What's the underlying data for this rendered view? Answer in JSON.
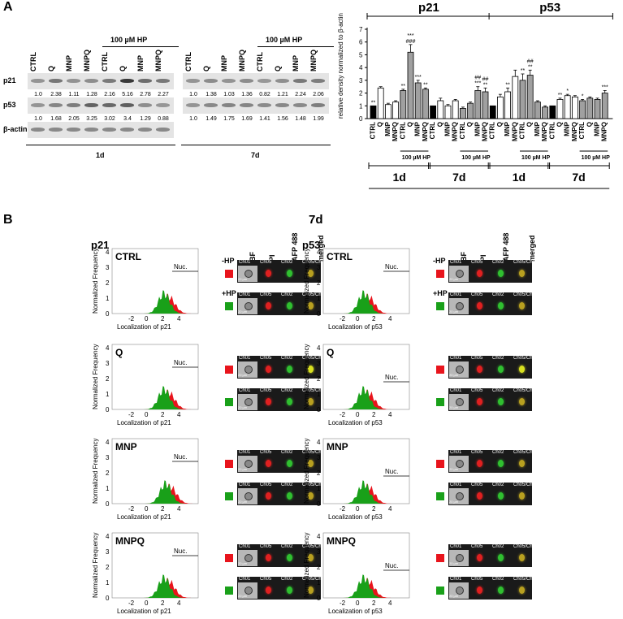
{
  "panel_a": {
    "label": "A",
    "blot_1d": {
      "lanes": [
        "CTRL",
        "Q",
        "MNP",
        "MNPQ",
        "CTRL",
        "Q",
        "MNP",
        "MNPQ"
      ],
      "hp_label": "100 µM HP",
      "rows": [
        {
          "name": "p21",
          "values": [
            "1.0",
            "2.38",
            "1.11",
            "1.28",
            "2.16",
            "5.16",
            "2.78",
            "2.27"
          ]
        },
        {
          "name": "p53",
          "values": [
            "1.0",
            "1.68",
            "2.05",
            "3.25",
            "3.02",
            "3.4",
            "1.29",
            "0.88"
          ]
        },
        {
          "name": "β-actin",
          "values": []
        }
      ],
      "day": "1d"
    },
    "blot_7d": {
      "lanes": [
        "CTRL",
        "Q",
        "MNP",
        "MNPQ",
        "CTRL",
        "Q",
        "MNP",
        "MNPQ"
      ],
      "hp_label": "100 µM HP",
      "rows": [
        {
          "name": "p21",
          "values": [
            "1.0",
            "1.38",
            "1.03",
            "1.36",
            "0.82",
            "1.21",
            "2.24",
            "2.06"
          ]
        },
        {
          "name": "p53",
          "values": [
            "1.0",
            "1.49",
            "1.75",
            "1.69",
            "1.41",
            "1.56",
            "1.48",
            "1.99"
          ]
        }
      ],
      "day": "7d"
    }
  },
  "chart_data": {
    "type": "bar",
    "ylabel": "relative density normalized to β-actin",
    "ylim": [
      0,
      7
    ],
    "yticks": [
      "0",
      "1",
      "2",
      "3",
      "4",
      "5",
      "6",
      "7"
    ],
    "groups": [
      "p21",
      "p53"
    ],
    "days": [
      "1d",
      "7d",
      "1d",
      "7d"
    ],
    "hp_label": "100 µM HP",
    "categories": [
      "CTRL",
      "Q",
      "MNP",
      "MNPQ",
      "CTRL",
      "Q",
      "MNP",
      "MNPQ",
      "CTRL",
      "Q",
      "MNP",
      "MNPQ",
      "CTRL",
      "Q",
      "MNP",
      "MNPQ",
      "CTRL",
      "Q",
      "MNP",
      "MNPQ",
      "CTRL",
      "Q",
      "MNP",
      "MNPQ",
      "CTRL",
      "Q",
      "MNP",
      "MNPQ",
      "CTRL",
      "Q",
      "MNP",
      "MNPQ"
    ],
    "values": [
      1.0,
      2.4,
      1.1,
      1.3,
      2.2,
      5.2,
      2.8,
      2.3,
      1.0,
      1.4,
      1.0,
      1.4,
      0.8,
      1.2,
      2.2,
      2.1,
      1.0,
      1.7,
      2.1,
      3.3,
      3.0,
      3.4,
      1.3,
      0.9,
      1.0,
      1.5,
      1.8,
      1.7,
      1.4,
      1.6,
      1.5,
      2.0
    ],
    "errors": [
      0,
      0.1,
      0.1,
      0.1,
      0.1,
      0.6,
      0.2,
      0.1,
      0,
      0.2,
      0.1,
      0.1,
      0.1,
      0.1,
      0.3,
      0.3,
      0,
      0.2,
      0.3,
      0.5,
      0.5,
      0.4,
      0.1,
      0.1,
      0,
      0.1,
      0.1,
      0.1,
      0.1,
      0.1,
      0.1,
      0.2
    ],
    "bar_fill": [
      "black",
      "white",
      "white",
      "white",
      "gray",
      "gray",
      "gray",
      "gray",
      "black",
      "white",
      "white",
      "white",
      "gray",
      "gray",
      "gray",
      "gray",
      "black",
      "white",
      "white",
      "white",
      "gray",
      "gray",
      "gray",
      "gray",
      "black",
      "white",
      "white",
      "white",
      "gray",
      "gray",
      "gray",
      "gray"
    ],
    "annotations": [
      "**",
      "",
      "",
      "",
      "**",
      "***\n###",
      "***",
      "**",
      "",
      "",
      "",
      "",
      "",
      "",
      "##\n***",
      "##\n**",
      "",
      "",
      "**",
      "",
      "**",
      "##\n**",
      "",
      "",
      "",
      "**",
      "*",
      "",
      "*",
      "",
      "",
      "***"
    ]
  },
  "panel_b": {
    "label": "B",
    "day": "7d",
    "channel_heads": [
      "BF",
      "PI",
      "AFP 488",
      "merged"
    ],
    "hp_labels": [
      "-HP",
      "+HP"
    ],
    "nuc": "Nuc.",
    "ylabel": "Normalized Frequency",
    "yticks": [
      "0",
      "1",
      "2",
      "3",
      "4"
    ],
    "xticks": [
      "-2",
      "0",
      "2",
      "4"
    ],
    "cell_headers": [
      "Ch01",
      "Ch05",
      "Ch02",
      "Ch05/Ch02"
    ],
    "scale": "20 µm",
    "colors": {
      "minus_hp": "#e8141c",
      "plus_hp": "#19a019"
    },
    "columns": [
      {
        "protein": "p21",
        "xlabel": "Localization of p21",
        "conditions": [
          {
            "name": "CTRL",
            "ids": [
              "252",
              "44"
            ]
          },
          {
            "name": "Q",
            "ids": [
              "14",
              "37"
            ]
          },
          {
            "name": "MNP",
            "ids": [
              "107",
              "259"
            ]
          },
          {
            "name": "MNPQ",
            "ids": [
              "58",
              "52"
            ]
          }
        ]
      },
      {
        "protein": "p53",
        "xlabel": "Localization of p53",
        "conditions": [
          {
            "name": "CTRL",
            "ids": [
              "75",
              "43"
            ]
          },
          {
            "name": "Q",
            "ids": [
              "44",
              "29"
            ]
          },
          {
            "name": "MNP",
            "ids": [
              "27",
              "47"
            ]
          },
          {
            "name": "MNPQ",
            "ids": [
              "165",
              "33"
            ]
          }
        ]
      }
    ]
  }
}
